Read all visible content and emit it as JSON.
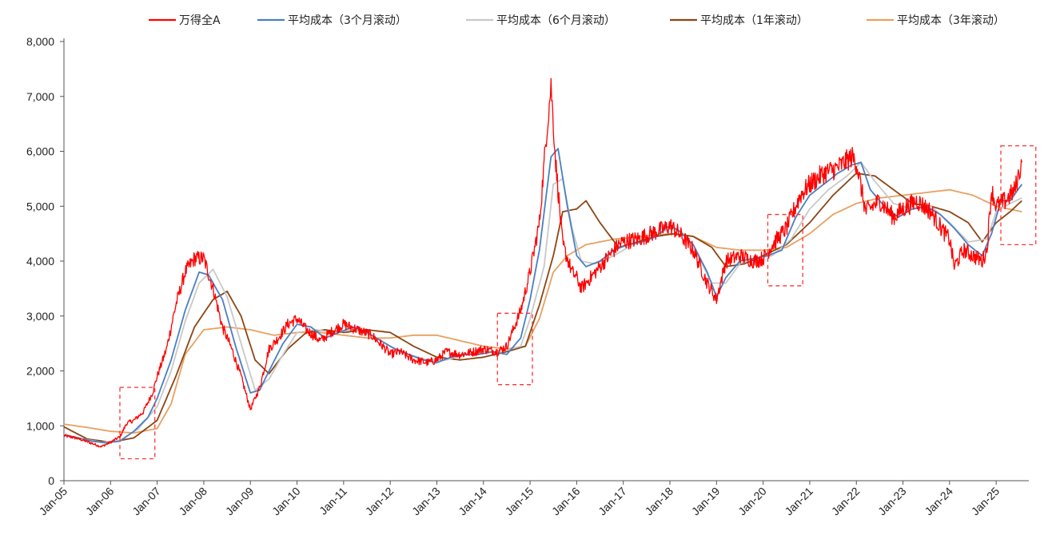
{
  "chart_data": {
    "type": "line",
    "title": "",
    "xlabel": "",
    "ylabel": "",
    "ylim": [
      0,
      8000
    ],
    "x_ticks": [
      "Jan-05",
      "Jan-06",
      "Jan-07",
      "Jan-08",
      "Jan-09",
      "Jan-10",
      "Jan-11",
      "Jan-12",
      "Jan-13",
      "Jan-14",
      "Jan-15",
      "Jan-16",
      "Jan-17",
      "Jan-18",
      "Jan-19",
      "Jan-20",
      "Jan-21",
      "Jan-22",
      "Jan-23",
      "Jan-24",
      "Jan-25"
    ],
    "y_ticks": [
      "0",
      "1,000",
      "2,000",
      "3,000",
      "4,000",
      "5,000",
      "6,000",
      "7,000",
      "8,000"
    ],
    "y_tick_values": [
      0,
      1000,
      2000,
      3000,
      4000,
      5000,
      6000,
      7000,
      8000
    ],
    "legend_position": "top",
    "grid": false,
    "series": [
      {
        "name": "万得全A",
        "color": "#ff0000",
        "x": [
          2005.0,
          2005.2,
          2005.4,
          2005.6,
          2005.8,
          2006.0,
          2006.2,
          2006.35,
          2006.5,
          2006.7,
          2006.9,
          2007.0,
          2007.2,
          2007.4,
          2007.6,
          2007.8,
          2008.0,
          2008.2,
          2008.4,
          2008.6,
          2008.8,
          2009.0,
          2009.2,
          2009.4,
          2009.6,
          2009.8,
          2010.0,
          2010.2,
          2010.5,
          2010.8,
          2011.0,
          2011.3,
          2011.6,
          2011.9,
          2012.0,
          2012.2,
          2012.5,
          2012.8,
          2013.0,
          2013.2,
          2013.5,
          2013.8,
          2014.0,
          2014.3,
          2014.5,
          2014.8,
          2015.0,
          2015.2,
          2015.35,
          2015.45,
          2015.55,
          2015.7,
          2015.9,
          2016.0,
          2016.1,
          2016.3,
          2016.6,
          2016.9,
          2017.0,
          2017.3,
          2017.6,
          2017.9,
          2018.0,
          2018.2,
          2018.5,
          2018.8,
          2019.0,
          2019.2,
          2019.5,
          2019.8,
          2020.0,
          2020.2,
          2020.5,
          2020.8,
          2021.0,
          2021.3,
          2021.6,
          2021.9,
          2022.0,
          2022.2,
          2022.5,
          2022.8,
          2023.0,
          2023.3,
          2023.6,
          2023.9,
          2024.0,
          2024.1,
          2024.3,
          2024.5,
          2024.7,
          2024.8,
          2024.9,
          2025.0,
          2025.2,
          2025.4,
          2025.55
        ],
        "values": [
          820,
          790,
          740,
          680,
          620,
          700,
          800,
          1050,
          1100,
          1250,
          1600,
          1900,
          2400,
          3200,
          3800,
          4050,
          4050,
          3500,
          2800,
          2400,
          1900,
          1300,
          1700,
          2400,
          2600,
          2850,
          2950,
          2750,
          2550,
          2750,
          2850,
          2750,
          2650,
          2400,
          2300,
          2350,
          2200,
          2150,
          2200,
          2350,
          2300,
          2350,
          2400,
          2350,
          2450,
          3100,
          3800,
          4700,
          6300,
          7200,
          5800,
          4300,
          3800,
          3700,
          3500,
          3700,
          4000,
          4300,
          4350,
          4400,
          4500,
          4600,
          4650,
          4500,
          4200,
          3600,
          3300,
          4000,
          4100,
          4000,
          4050,
          4300,
          4600,
          5200,
          5400,
          5600,
          5700,
          5900,
          5800,
          4900,
          5100,
          4800,
          4950,
          5100,
          4900,
          4500,
          4400,
          3900,
          4200,
          4100,
          4000,
          4200,
          5300,
          5000,
          5100,
          5300,
          5800
        ]
      },
      {
        "name": "平均成本（3个月滚动）",
        "color": "#4a7fc1",
        "x": [
          2005.0,
          2005.3,
          2005.6,
          2005.9,
          2006.2,
          2006.5,
          2006.8,
          2007.0,
          2007.3,
          2007.6,
          2007.9,
          2008.1,
          2008.4,
          2008.7,
          2009.0,
          2009.2,
          2009.4,
          2009.7,
          2010.0,
          2010.3,
          2010.6,
          2010.9,
          2011.2,
          2011.5,
          2011.8,
          2012.1,
          2012.4,
          2012.7,
          2013.0,
          2013.3,
          2013.6,
          2013.9,
          2014.2,
          2014.5,
          2014.8,
          2015.0,
          2015.2,
          2015.45,
          2015.6,
          2015.8,
          2016.0,
          2016.2,
          2016.5,
          2016.8,
          2017.1,
          2017.4,
          2017.7,
          2018.0,
          2018.2,
          2018.5,
          2018.8,
          2019.0,
          2019.2,
          2019.5,
          2019.8,
          2020.1,
          2020.4,
          2020.7,
          2021.0,
          2021.3,
          2021.6,
          2021.9,
          2022.1,
          2022.3,
          2022.6,
          2022.9,
          2023.2,
          2023.5,
          2023.8,
          2024.1,
          2024.4,
          2024.7,
          2024.9,
          2025.1,
          2025.3,
          2025.55
        ],
        "values": [
          830,
          780,
          720,
          690,
          720,
          900,
          1150,
          1500,
          2200,
          3100,
          3800,
          3750,
          3300,
          2400,
          1600,
          1650,
          2000,
          2500,
          2850,
          2800,
          2600,
          2700,
          2800,
          2700,
          2550,
          2400,
          2300,
          2200,
          2150,
          2250,
          2300,
          2300,
          2350,
          2300,
          2600,
          3300,
          4200,
          5900,
          6050,
          5000,
          4100,
          3900,
          4000,
          4200,
          4300,
          4350,
          4450,
          4650,
          4550,
          4300,
          3800,
          3350,
          3700,
          4000,
          4050,
          4100,
          4200,
          4800,
          5200,
          5400,
          5600,
          5750,
          5800,
          5300,
          5000,
          4800,
          4950,
          5000,
          4850,
          4600,
          4300,
          4100,
          4500,
          5100,
          5100,
          5400
        ]
      },
      {
        "name": "平均成本（6个月滚动）",
        "color": "#c8c8c8",
        "x": [
          2005.0,
          2005.4,
          2005.8,
          2006.2,
          2006.6,
          2007.0,
          2007.3,
          2007.6,
          2007.9,
          2008.2,
          2008.5,
          2008.8,
          2009.1,
          2009.4,
          2009.7,
          2010.0,
          2010.4,
          2010.8,
          2011.2,
          2011.6,
          2012.0,
          2012.4,
          2012.8,
          2013.2,
          2013.6,
          2014.0,
          2014.4,
          2014.8,
          2015.0,
          2015.3,
          2015.5,
          2015.7,
          2015.9,
          2016.1,
          2016.4,
          2016.8,
          2017.2,
          2017.6,
          2018.0,
          2018.3,
          2018.6,
          2018.9,
          2019.2,
          2019.5,
          2019.8,
          2020.2,
          2020.6,
          2021.0,
          2021.4,
          2021.8,
          2022.1,
          2022.4,
          2022.8,
          2023.2,
          2023.6,
          2024.0,
          2024.4,
          2024.8,
          2025.0,
          2025.3,
          2025.55
        ],
        "values": [
          850,
          760,
          700,
          730,
          950,
          1350,
          2000,
          2900,
          3600,
          3850,
          3350,
          2500,
          1650,
          1850,
          2300,
          2700,
          2750,
          2700,
          2750,
          2650,
          2450,
          2300,
          2200,
          2200,
          2300,
          2350,
          2350,
          2450,
          2950,
          3900,
          5400,
          5500,
          4600,
          4000,
          3950,
          4100,
          4300,
          4400,
          4600,
          4500,
          4100,
          3600,
          3600,
          3950,
          4050,
          4100,
          4400,
          4950,
          5300,
          5550,
          5800,
          5450,
          5050,
          4950,
          5000,
          4700,
          4350,
          4400,
          4900,
          5050,
          5150
        ]
      },
      {
        "name": "平均成本（1年滚动）",
        "color": "#8b4513",
        "x": [
          2005.0,
          2005.5,
          2006.0,
          2006.5,
          2007.0,
          2007.4,
          2007.8,
          2008.2,
          2008.5,
          2008.8,
          2009.1,
          2009.4,
          2009.8,
          2010.2,
          2010.6,
          2011.0,
          2011.5,
          2012.0,
          2012.5,
          2013.0,
          2013.5,
          2014.0,
          2014.5,
          2014.9,
          2015.2,
          2015.5,
          2015.7,
          2016.0,
          2016.2,
          2016.5,
          2016.9,
          2017.3,
          2017.7,
          2018.1,
          2018.5,
          2018.9,
          2019.2,
          2019.6,
          2020.0,
          2020.5,
          2021.0,
          2021.5,
          2022.0,
          2022.4,
          2022.8,
          2023.2,
          2023.6,
          2024.0,
          2024.4,
          2024.7,
          2025.0,
          2025.3,
          2025.55
        ],
        "values": [
          980,
          760,
          700,
          780,
          1100,
          1900,
          2800,
          3300,
          3450,
          3000,
          2200,
          1950,
          2400,
          2700,
          2750,
          2700,
          2750,
          2700,
          2450,
          2250,
          2200,
          2250,
          2350,
          2450,
          3200,
          4100,
          4900,
          4950,
          5100,
          4700,
          4250,
          4350,
          4450,
          4500,
          4450,
          4250,
          3900,
          3950,
          4100,
          4300,
          4700,
          5200,
          5600,
          5550,
          5300,
          5050,
          5000,
          4900,
          4700,
          4350,
          4700,
          4900,
          5100
        ]
      },
      {
        "name": "平均成本（3年滚动）",
        "color": "#e8a060",
        "x": [
          2005.0,
          2005.5,
          2006.0,
          2006.5,
          2007.0,
          2007.3,
          2007.6,
          2008.0,
          2008.5,
          2009.0,
          2009.5,
          2010.0,
          2010.5,
          2011.0,
          2011.5,
          2012.0,
          2012.5,
          2013.0,
          2013.5,
          2014.0,
          2014.5,
          2014.9,
          2015.2,
          2015.5,
          2015.8,
          2016.2,
          2016.8,
          2017.4,
          2018.0,
          2018.5,
          2019.0,
          2019.5,
          2020.0,
          2020.5,
          2021.0,
          2021.5,
          2022.0,
          2022.5,
          2023.0,
          2023.5,
          2024.0,
          2024.5,
          2025.0,
          2025.55
        ],
        "values": [
          1030,
          970,
          900,
          870,
          950,
          1400,
          2300,
          2750,
          2800,
          2750,
          2650,
          2700,
          2700,
          2650,
          2600,
          2600,
          2650,
          2650,
          2550,
          2450,
          2400,
          2450,
          2950,
          3800,
          4100,
          4300,
          4400,
          4450,
          4500,
          4450,
          4250,
          4200,
          4200,
          4250,
          4500,
          4850,
          5050,
          5150,
          5200,
          5250,
          5300,
          5200,
          5000,
          4900
        ]
      }
    ],
    "annotations": [
      {
        "type": "dashed-box",
        "color": "#ff3333",
        "x_range": [
          2006.2,
          2006.95
        ],
        "y_range": [
          400,
          1700
        ]
      },
      {
        "type": "dashed-box",
        "color": "#ff3333",
        "x_range": [
          2014.3,
          2015.05
        ],
        "y_range": [
          1750,
          3050
        ]
      },
      {
        "type": "dashed-box",
        "color": "#ff3333",
        "x_range": [
          2020.1,
          2020.85
        ],
        "y_range": [
          3550,
          4850
        ]
      },
      {
        "type": "dashed-box",
        "color": "#ff3333",
        "x_range": [
          2025.1,
          2025.85
        ],
        "y_range": [
          4300,
          6100
        ]
      }
    ]
  }
}
